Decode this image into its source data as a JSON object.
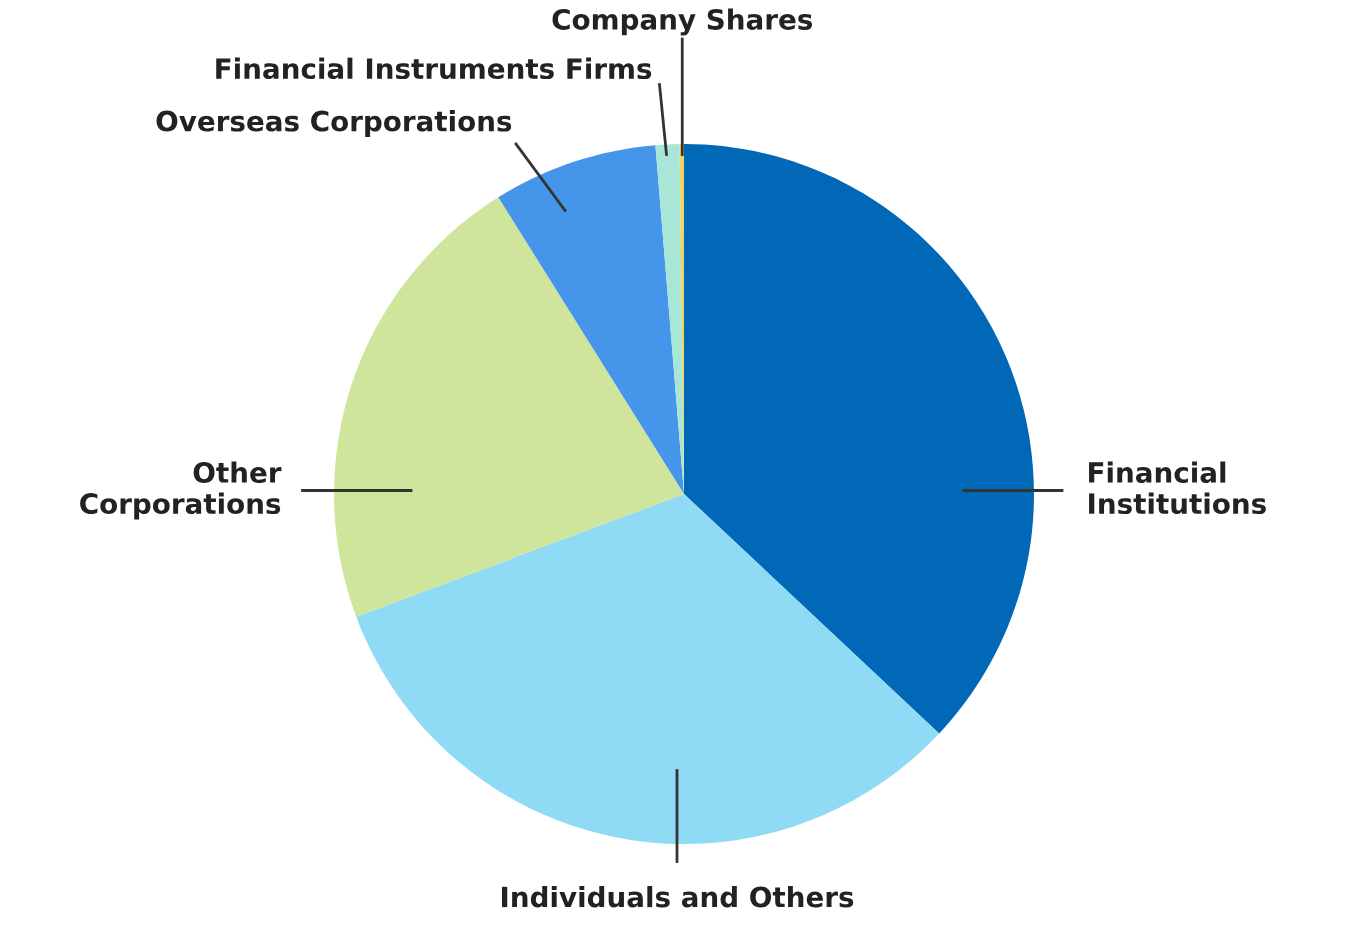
{
  "chart_data": {
    "type": "pie",
    "categories": [
      "Financial\nInstitutions",
      "Individuals and Others",
      "Other\nCorporations",
      "Overseas Corporations",
      "Financial Instruments Firms",
      "Company Shares"
    ],
    "values": [
      37.0,
      32.3,
      21.8,
      7.6,
      1.1,
      0.2
    ],
    "colors": [
      "#0068b7",
      "#8fdbf5",
      "#d0e59c",
      "#4596ea",
      "#a8e6d8",
      "#f3d35f"
    ],
    "legend": false
  }
}
